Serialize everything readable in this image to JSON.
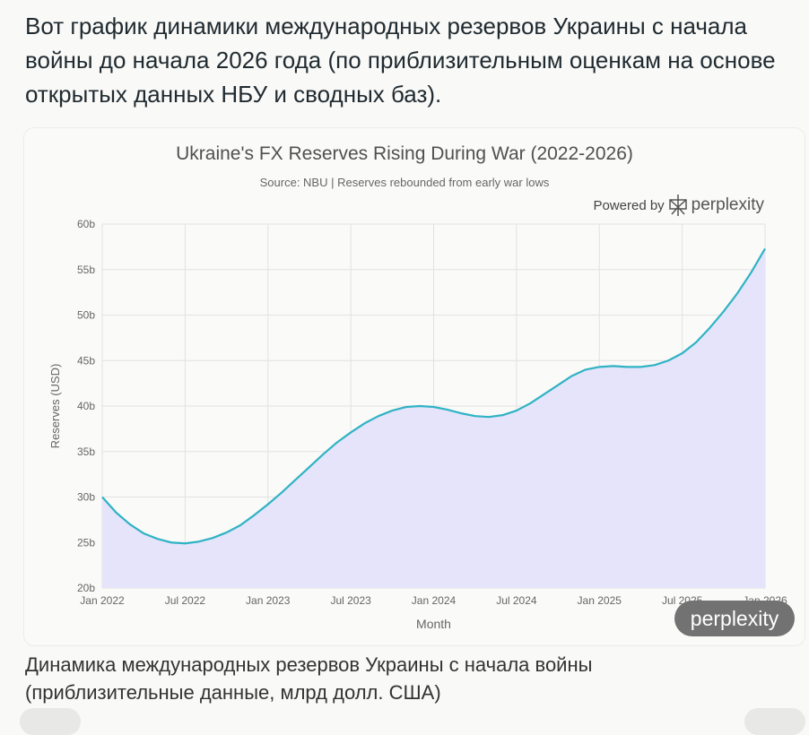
{
  "message": {
    "text": "Вот график динамики международных резервов Украины с начала войны до начала 2026 года (по приблизительным оценкам на основе открытых данных НБУ и сводных баз)."
  },
  "caption": {
    "line1": "Динамика международных резервов Украины с начала войны",
    "line2": "(приблизительные данные, млрд долл. США)"
  },
  "watermark": {
    "powered_by": "Powered by",
    "brand": "perplexity",
    "badge": "perplexity"
  },
  "colors": {
    "line": "#2fb3c4",
    "fill": "#e6e4fa",
    "grid": "#e2e2e2"
  },
  "chart_data": {
    "type": "area",
    "title": "Ukraine's FX Reserves Rising During War (2022-2026)",
    "subtitle": "Source: NBU | Reserves rebounded from early war lows",
    "xlabel": "Month",
    "ylabel": "Reserves (USD)",
    "ylim": [
      20,
      60
    ],
    "yticks": [
      20,
      25,
      30,
      35,
      40,
      45,
      50,
      55,
      60
    ],
    "ytick_labels": [
      "20b",
      "25b",
      "30b",
      "35b",
      "40b",
      "45b",
      "50b",
      "55b",
      "60b"
    ],
    "xlim_months": [
      0,
      48
    ],
    "xticks_months": [
      0,
      6,
      12,
      18,
      24,
      30,
      36,
      42,
      48
    ],
    "xtick_labels": [
      "Jan 2022",
      "Jul 2022",
      "Jan 2023",
      "Jul 2023",
      "Jan 2024",
      "Jul 2024",
      "Jan 2025",
      "Jul 2025",
      "Jan 2026"
    ],
    "grid": true,
    "x_months": [
      0,
      1,
      2,
      3,
      4,
      5,
      6,
      7,
      8,
      9,
      10,
      11,
      12,
      13,
      14,
      15,
      16,
      17,
      18,
      19,
      20,
      21,
      22,
      23,
      24,
      25,
      26,
      27,
      28,
      29,
      30,
      31,
      32,
      33,
      34,
      35,
      36,
      37,
      38,
      39,
      40,
      41,
      42,
      43,
      44,
      45,
      46,
      47,
      48
    ],
    "values": [
      30.0,
      28.3,
      27.0,
      26.0,
      25.4,
      25.0,
      24.9,
      25.1,
      25.5,
      26.1,
      26.9,
      28.0,
      29.2,
      30.5,
      31.9,
      33.3,
      34.7,
      36.0,
      37.1,
      38.1,
      38.9,
      39.5,
      39.9,
      40.0,
      39.9,
      39.6,
      39.2,
      38.9,
      38.8,
      39.0,
      39.5,
      40.3,
      41.3,
      42.3,
      43.3,
      44.0,
      44.3,
      44.4,
      44.3,
      44.3,
      44.5,
      45.0,
      45.8,
      47.0,
      48.6,
      50.4,
      52.4,
      54.7,
      57.3
    ]
  }
}
